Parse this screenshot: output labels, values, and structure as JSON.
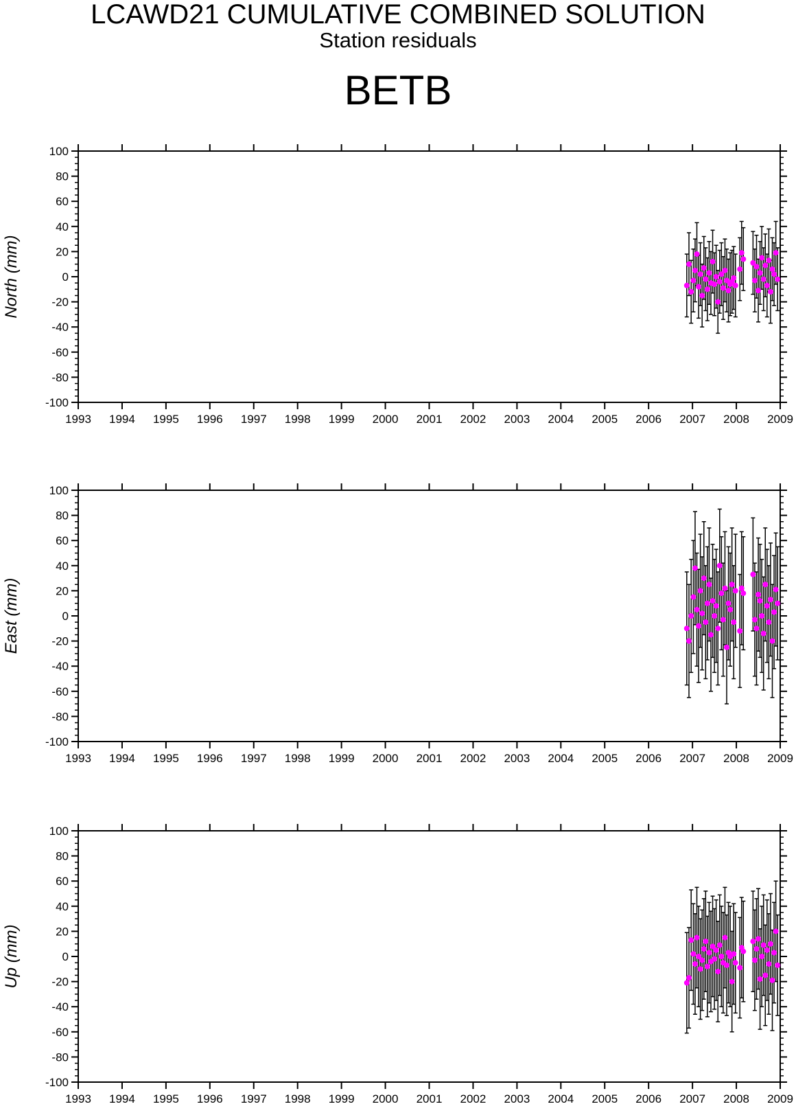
{
  "header": {
    "title": "LCAWD21 CUMULATIVE COMBINED SOLUTION",
    "subtitle": "Station residuals",
    "station": "BETB"
  },
  "colors": {
    "residual_point": "#ff00ff",
    "error_bar": "#000000",
    "axis": "#000000"
  },
  "chart_data": [
    {
      "type": "scatter",
      "component": "north",
      "ylabel": "North (mm)",
      "xlim": [
        1993,
        2009
      ],
      "ylim": [
        -100,
        100
      ],
      "x_ticks": [
        1993,
        1994,
        1995,
        1996,
        1997,
        1998,
        1999,
        2000,
        2001,
        2002,
        2003,
        2004,
        2005,
        2006,
        2007,
        2008,
        2009
      ],
      "y_ticks": [
        100,
        80,
        60,
        40,
        20,
        0,
        -20,
        -40,
        -60,
        -80,
        -100
      ],
      "error_bar_halfwidth_mm": 25,
      "series": [
        {
          "marker": "filled-circle",
          "with_error_bars": true,
          "x": [
            2006.87,
            2006.92,
            2006.97,
            2007.02,
            2007.06,
            2007.1,
            2007.14,
            2007.18,
            2007.22,
            2007.26,
            2007.3,
            2007.34,
            2007.38,
            2007.42,
            2007.46,
            2007.5,
            2007.54,
            2007.58,
            2007.62,
            2007.66,
            2007.7,
            2007.74,
            2007.78,
            2007.82,
            2007.86,
            2007.9,
            2007.94,
            2007.98,
            2008.08,
            2008.12,
            2008.16,
            2008.38,
            2008.42,
            2008.46,
            2008.5,
            2008.54,
            2008.58,
            2008.62,
            2008.66,
            2008.7,
            2008.74,
            2008.78,
            2008.82,
            2008.86,
            2008.9,
            2008.94
          ],
          "y": [
            -7,
            10,
            -12,
            -3,
            5,
            18,
            -8,
            2,
            -15,
            7,
            -2,
            -10,
            3,
            -5,
            12,
            -6,
            0,
            -20,
            -4,
            2,
            -9,
            5,
            -3,
            -11,
            -6,
            -4,
            -1,
            -7,
            6,
            19,
            14,
            11,
            -3,
            8,
            -11,
            3,
            15,
            -2,
            9,
            -7,
            13,
            -12,
            6,
            2,
            19,
            -2
          ]
        }
      ]
    },
    {
      "type": "scatter",
      "component": "east",
      "ylabel": "East (mm)",
      "xlim": [
        1993,
        2009
      ],
      "ylim": [
        -100,
        100
      ],
      "x_ticks": [
        1993,
        1994,
        1995,
        1996,
        1997,
        1998,
        1999,
        2000,
        2001,
        2002,
        2003,
        2004,
        2005,
        2006,
        2007,
        2008,
        2009
      ],
      "y_ticks": [
        100,
        80,
        60,
        40,
        20,
        0,
        -20,
        -40,
        -60,
        -80,
        -100
      ],
      "error_bar_halfwidth_mm": 45,
      "series": [
        {
          "marker": "filled-circle",
          "with_error_bars": true,
          "x": [
            2006.87,
            2006.92,
            2006.97,
            2007.02,
            2007.06,
            2007.1,
            2007.14,
            2007.18,
            2007.22,
            2007.26,
            2007.3,
            2007.34,
            2007.38,
            2007.42,
            2007.46,
            2007.5,
            2007.54,
            2007.58,
            2007.62,
            2007.66,
            2007.7,
            2007.74,
            2007.78,
            2007.82,
            2007.86,
            2007.9,
            2007.94,
            2007.98,
            2008.08,
            2008.12,
            2008.16,
            2008.38,
            2008.42,
            2008.46,
            2008.5,
            2008.54,
            2008.58,
            2008.62,
            2008.66,
            2008.7,
            2008.74,
            2008.78,
            2008.82,
            2008.86,
            2008.9,
            2008.94
          ],
          "y": [
            -10,
            -20,
            0,
            15,
            38,
            5,
            -8,
            20,
            2,
            30,
            -5,
            10,
            25,
            -15,
            12,
            0,
            8,
            -10,
            40,
            18,
            -3,
            22,
            -25,
            10,
            5,
            25,
            -5,
            20,
            -12,
            22,
            18,
            33,
            -3,
            -10,
            17,
            12,
            0,
            -14,
            25,
            8,
            -5,
            13,
            -20,
            3,
            21,
            10
          ]
        }
      ]
    },
    {
      "type": "scatter",
      "component": "up",
      "ylabel": "Up (mm)",
      "xlim": [
        1993,
        2009
      ],
      "ylim": [
        -100,
        100
      ],
      "x_ticks": [
        1993,
        1994,
        1995,
        1996,
        1997,
        1998,
        1999,
        2000,
        2001,
        2002,
        2003,
        2004,
        2005,
        2006,
        2007,
        2008,
        2009
      ],
      "y_ticks": [
        100,
        80,
        60,
        40,
        20,
        0,
        -20,
        -40,
        -60,
        -80,
        -100
      ],
      "error_bar_halfwidth_mm": 40,
      "series": [
        {
          "marker": "filled-circle",
          "with_error_bars": true,
          "x": [
            2006.87,
            2006.92,
            2006.97,
            2007.02,
            2007.06,
            2007.1,
            2007.14,
            2007.18,
            2007.22,
            2007.26,
            2007.3,
            2007.34,
            2007.38,
            2007.42,
            2007.46,
            2007.5,
            2007.54,
            2007.58,
            2007.62,
            2007.66,
            2007.7,
            2007.74,
            2007.78,
            2007.82,
            2007.86,
            2007.9,
            2007.94,
            2007.98,
            2008.08,
            2008.12,
            2008.16,
            2008.38,
            2008.42,
            2008.46,
            2008.5,
            2008.54,
            2008.58,
            2008.62,
            2008.66,
            2008.7,
            2008.74,
            2008.78,
            2008.82,
            2008.86,
            2008.9,
            2008.94
          ],
          "y": [
            -21,
            -17,
            13,
            2,
            -6,
            15,
            0,
            -10,
            -3,
            6,
            12,
            -8,
            3,
            -4,
            8,
            -2,
            5,
            -12,
            9,
            0,
            -5,
            15,
            -7,
            3,
            0,
            -20,
            2,
            -5,
            -9,
            7,
            4,
            12,
            -3,
            6,
            14,
            -18,
            0,
            9,
            -15,
            5,
            -6,
            10,
            -19,
            3,
            20,
            -7
          ]
        }
      ]
    }
  ]
}
